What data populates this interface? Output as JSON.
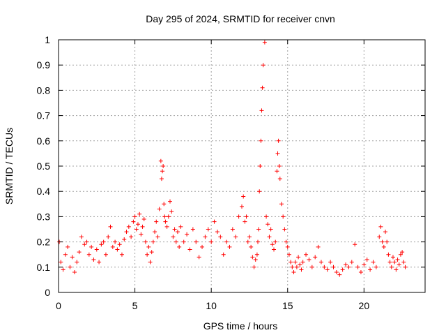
{
  "chart_data": {
    "type": "scatter",
    "title": "Day 295 of 2024, SRMTID for receiver cnvn",
    "xlabel": "GPS time / hours",
    "ylabel": "SRMTID / TECUs",
    "xlim": [
      0,
      24
    ],
    "ylim": [
      0,
      1
    ],
    "x_ticks": [
      0,
      5,
      10,
      15,
      20
    ],
    "y_ticks": [
      0,
      0.1,
      0.2,
      0.3,
      0.4,
      0.5,
      0.6,
      0.7,
      0.8,
      0.9,
      1
    ],
    "x_tick_labels": [
      "0",
      "5",
      "10",
      "15",
      "20"
    ],
    "y_tick_labels": [
      "0",
      "0.1",
      "0.2",
      "0.3",
      "0.4",
      "0.5",
      "0.6",
      "0.7",
      "0.8",
      "0.9",
      "1"
    ],
    "grid": true,
    "marker": "+",
    "series_color": "#ff0000",
    "series": [
      {
        "name": "SRMTID",
        "x": [
          0.05,
          0.15,
          0.3,
          0.45,
          0.6,
          0.75,
          0.9,
          1.05,
          1.2,
          1.35,
          1.5,
          1.7,
          1.85,
          2.0,
          2.15,
          2.3,
          2.5,
          2.65,
          2.8,
          2.95,
          3.1,
          3.25,
          3.4,
          3.55,
          3.7,
          3.85,
          4.0,
          4.15,
          4.3,
          4.45,
          4.6,
          4.75,
          4.9,
          5.0,
          5.1,
          5.2,
          5.3,
          5.4,
          5.5,
          5.6,
          5.7,
          5.8,
          5.9,
          6.0,
          6.1,
          6.2,
          6.3,
          6.4,
          6.5,
          6.6,
          6.7,
          6.75,
          6.8,
          6.85,
          6.9,
          6.95,
          7.0,
          7.1,
          7.2,
          7.3,
          7.4,
          7.5,
          7.6,
          7.7,
          7.8,
          7.9,
          8.0,
          8.2,
          8.4,
          8.6,
          8.8,
          9.0,
          9.2,
          9.4,
          9.6,
          9.8,
          10.0,
          10.2,
          10.4,
          10.6,
          10.8,
          11.0,
          11.2,
          11.4,
          11.6,
          11.8,
          12.0,
          12.1,
          12.2,
          12.3,
          12.4,
          12.5,
          12.6,
          12.7,
          12.8,
          12.9,
          13.0,
          13.05,
          13.1,
          13.15,
          13.2,
          13.25,
          13.3,
          13.35,
          13.4,
          13.5,
          13.6,
          13.7,
          13.8,
          13.9,
          14.0,
          14.1,
          14.2,
          14.3,
          14.35,
          14.4,
          14.45,
          14.5,
          14.6,
          14.7,
          14.8,
          14.9,
          15.0,
          15.1,
          15.2,
          15.3,
          15.4,
          15.5,
          15.6,
          15.7,
          15.8,
          15.9,
          16.0,
          16.2,
          16.4,
          16.6,
          16.8,
          17.0,
          17.2,
          17.4,
          17.6,
          17.8,
          18.0,
          18.2,
          18.4,
          18.6,
          18.8,
          19.0,
          19.2,
          19.4,
          19.6,
          19.8,
          20.0,
          20.2,
          20.4,
          20.6,
          20.8,
          21.0,
          21.1,
          21.2,
          21.3,
          21.4,
          21.5,
          21.6,
          21.7,
          21.8,
          21.9,
          22.0,
          22.1,
          22.2,
          22.3,
          22.4,
          22.5,
          22.6,
          22.7
        ],
        "y": [
          0.2,
          0.12,
          0.09,
          0.15,
          0.18,
          0.1,
          0.14,
          0.08,
          0.12,
          0.16,
          0.22,
          0.19,
          0.2,
          0.15,
          0.18,
          0.13,
          0.17,
          0.12,
          0.19,
          0.2,
          0.15,
          0.22,
          0.26,
          0.18,
          0.2,
          0.17,
          0.19,
          0.15,
          0.21,
          0.24,
          0.26,
          0.22,
          0.28,
          0.3,
          0.25,
          0.27,
          0.31,
          0.23,
          0.26,
          0.29,
          0.2,
          0.15,
          0.18,
          0.12,
          0.16,
          0.2,
          0.24,
          0.28,
          0.22,
          0.33,
          0.52,
          0.45,
          0.48,
          0.5,
          0.35,
          0.3,
          0.28,
          0.26,
          0.3,
          0.36,
          0.32,
          0.22,
          0.25,
          0.2,
          0.24,
          0.18,
          0.26,
          0.2,
          0.23,
          0.17,
          0.25,
          0.2,
          0.14,
          0.18,
          0.22,
          0.25,
          0.2,
          0.28,
          0.24,
          0.22,
          0.15,
          0.2,
          0.18,
          0.25,
          0.22,
          0.3,
          0.34,
          0.38,
          0.28,
          0.3,
          0.2,
          0.22,
          0.18,
          0.14,
          0.1,
          0.13,
          0.15,
          0.2,
          0.25,
          0.4,
          0.5,
          0.6,
          0.72,
          0.81,
          0.9,
          0.99,
          0.3,
          0.27,
          0.22,
          0.25,
          0.19,
          0.17,
          0.2,
          0.48,
          0.55,
          0.6,
          0.5,
          0.45,
          0.35,
          0.3,
          0.25,
          0.2,
          0.18,
          0.15,
          0.12,
          0.1,
          0.08,
          0.12,
          0.1,
          0.14,
          0.11,
          0.09,
          0.12,
          0.15,
          0.13,
          0.1,
          0.14,
          0.18,
          0.12,
          0.1,
          0.09,
          0.12,
          0.1,
          0.08,
          0.07,
          0.09,
          0.11,
          0.1,
          0.12,
          0.19,
          0.1,
          0.08,
          0.11,
          0.13,
          0.09,
          0.12,
          0.1,
          0.22,
          0.26,
          0.2,
          0.18,
          0.24,
          0.2,
          0.15,
          0.12,
          0.1,
          0.14,
          0.12,
          0.09,
          0.13,
          0.11,
          0.15,
          0.16,
          0.12,
          0.1
        ]
      }
    ]
  }
}
